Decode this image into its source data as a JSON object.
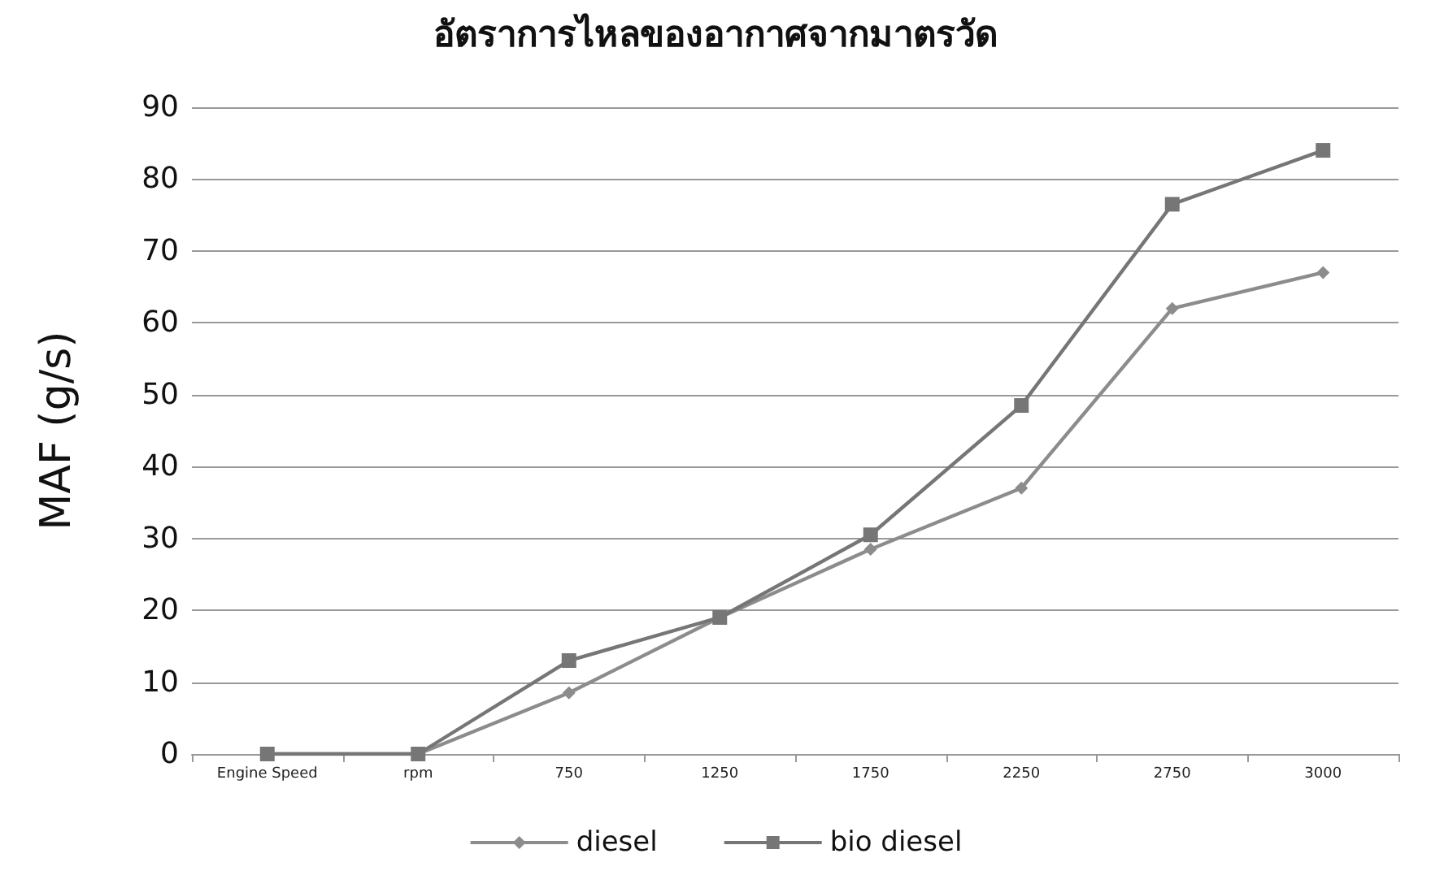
{
  "chart_data": {
    "type": "line",
    "title": "อัตราการไหลของอากาศจากมาตรวัด",
    "ylabel": "MAF (g/s)",
    "categories": [
      "Engine Speed",
      "rpm",
      "750",
      "1250",
      "1750",
      "2250",
      "2750",
      "3000"
    ],
    "series": [
      {
        "name": "diesel",
        "color": "#8c8c8c",
        "marker": "diamond",
        "values": [
          0,
          0,
          8.5,
          19,
          28.5,
          37,
          62,
          67
        ]
      },
      {
        "name": "bio diesel",
        "color": "#767676",
        "marker": "square",
        "values": [
          0,
          0,
          13,
          19,
          30.5,
          48.5,
          76.5,
          84
        ]
      }
    ],
    "ylim": [
      0,
      90
    ],
    "yticks": [
      0,
      10,
      20,
      30,
      40,
      50,
      60,
      70,
      80,
      90
    ],
    "grid": "y",
    "legend": "bottom"
  }
}
